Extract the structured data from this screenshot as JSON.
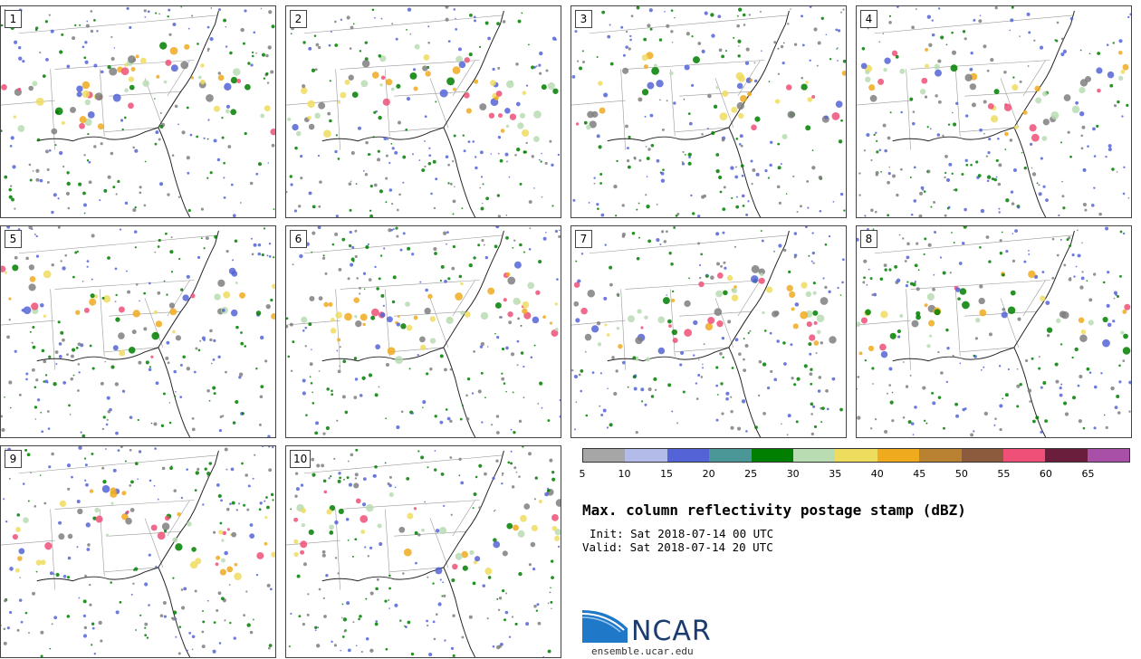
{
  "panels": [
    {
      "number": "1"
    },
    {
      "number": "2"
    },
    {
      "number": "3"
    },
    {
      "number": "4"
    },
    {
      "number": "5"
    },
    {
      "number": "6"
    },
    {
      "number": "7"
    },
    {
      "number": "8"
    },
    {
      "number": "9"
    },
    {
      "number": "10"
    }
  ],
  "colorbar": {
    "colors": [
      "#a6a6a6",
      "#b3bbe8",
      "#5464d7",
      "#4b9696",
      "#007f00",
      "#b9dcb3",
      "#eedc5e",
      "#f0aa1e",
      "#b98232",
      "#8c5a3c",
      "#ef5078",
      "#6b1e3c",
      "#a850a8"
    ],
    "ticks": [
      "5",
      "10",
      "15",
      "20",
      "25",
      "30",
      "35",
      "40",
      "45",
      "50",
      "55",
      "60",
      "65"
    ]
  },
  "title": "Max. column reflectivity postage stamp (dBZ)",
  "init": "Init: Sat 2018-07-14 00 UTC",
  "valid": "Valid: Sat 2018-07-14 20 UTC",
  "logo": {
    "text": "NCAR",
    "url": "ensemble.ucar.edu"
  }
}
